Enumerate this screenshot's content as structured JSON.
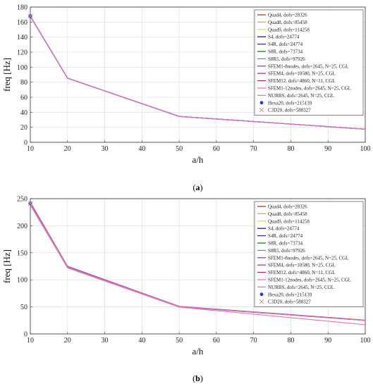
{
  "chart_data": [
    {
      "type": "line",
      "panel_label": "(a)",
      "panel_letter": "a",
      "xlabel": "a/h",
      "ylabel": "freq [Hz]",
      "xlim": [
        10,
        100
      ],
      "ylim": [
        0,
        180
      ],
      "xticks": [
        10,
        20,
        30,
        40,
        50,
        60,
        70,
        80,
        90,
        100
      ],
      "yticks": [
        0,
        20,
        40,
        60,
        80,
        100,
        120,
        140,
        160,
        180
      ],
      "grid": true,
      "legend_position": "top-right",
      "x": [
        10,
        20,
        50,
        100
      ],
      "series": [
        {
          "name": "Quad4, dofs=28326",
          "color": "#c0392b",
          "marker": "line",
          "values": [
            168,
            85.5,
            34.5,
            17.5
          ]
        },
        {
          "name": "Quad8, dofs=85458",
          "color": "#f5a623",
          "marker": "line",
          "values": [
            167.5,
            85.3,
            34.4,
            17.4
          ]
        },
        {
          "name": "Quad9, dofs=114258",
          "color": "#e6e62e",
          "marker": "line",
          "values": [
            167.5,
            85.3,
            34.4,
            17.4
          ]
        },
        {
          "name": "S4, dofs=24774",
          "color": "#1a1a8c",
          "marker": "line",
          "values": [
            167.8,
            85.4,
            34.5,
            17.5
          ]
        },
        {
          "name": "S4R, dofs=24774",
          "color": "#3333cc",
          "marker": "line",
          "values": [
            167.6,
            85.3,
            34.4,
            17.4
          ]
        },
        {
          "name": "S8R, dofs=73734",
          "color": "#1e7a1e",
          "marker": "line",
          "values": [
            167.4,
            85.2,
            34.4,
            17.4
          ]
        },
        {
          "name": "S8R5, dofs=97926",
          "color": "#3aa0d0",
          "marker": "line",
          "values": [
            167.4,
            85.2,
            34.4,
            17.4
          ]
        },
        {
          "name": "SFEM1-8nodes, dofs=2645, N=25, CGL",
          "color": "#8e44ad",
          "marker": "line",
          "values": [
            167.5,
            85.3,
            34.4,
            17.4
          ]
        },
        {
          "name": "SFEM4, dofs=10580, N=25, CGL",
          "color": "#b03a9a",
          "marker": "line",
          "values": [
            167.5,
            85.3,
            34.4,
            17.4
          ]
        },
        {
          "name": "SFEM12, dofs=4860, N=11, CGL",
          "color": "#d81b60",
          "marker": "line",
          "values": [
            167.5,
            85.3,
            34.4,
            17.4
          ]
        },
        {
          "name": "SFEM1-12nodes, dofs=2645, N=25, CGL",
          "color": "#e573b5",
          "marker": "line",
          "values": [
            167.5,
            85.3,
            34.4,
            17.4
          ]
        },
        {
          "name": "NURBS, dofs=2645, N=25, CGL",
          "color": "#d07ad0",
          "marker": "line",
          "values": [
            167.5,
            85.3,
            34.4,
            17.4
          ]
        },
        {
          "name": "Hexa20, dofs=215139",
          "color": "#1f3fcf",
          "marker": "dot",
          "values": [
            168,
            null,
            null,
            null
          ]
        },
        {
          "name": "C3D20, dofs=588327",
          "color": "#d09090",
          "marker": "x",
          "values": [
            168,
            null,
            null,
            null
          ]
        }
      ]
    },
    {
      "type": "line",
      "panel_label": "(b)",
      "panel_letter": "b",
      "xlabel": "a/h",
      "ylabel": "freq [Hz]",
      "xlim": [
        10,
        100
      ],
      "ylim": [
        0,
        250
      ],
      "xticks": [
        10,
        20,
        30,
        40,
        50,
        60,
        70,
        80,
        90,
        100
      ],
      "yticks": [
        0,
        50,
        100,
        150,
        200,
        250
      ],
      "grid": true,
      "legend_position": "top-right",
      "x": [
        10,
        20,
        50,
        100
      ],
      "series": [
        {
          "name": "Quad4, dofs=28326",
          "color": "#c0392b",
          "marker": "line",
          "values": [
            243,
            125,
            51,
            25.5
          ]
        },
        {
          "name": "Quad8, dofs=85458",
          "color": "#f5a623",
          "marker": "line",
          "values": [
            241,
            124,
            50.5,
            25
          ]
        },
        {
          "name": "Quad9, dofs=114258",
          "color": "#e6e62e",
          "marker": "line",
          "values": [
            241,
            124,
            50.5,
            25
          ]
        },
        {
          "name": "S4, dofs=24774",
          "color": "#1a1a8c",
          "marker": "line",
          "values": [
            242,
            124.5,
            50.5,
            25
          ]
        },
        {
          "name": "S4R, dofs=24774",
          "color": "#3333cc",
          "marker": "line",
          "values": [
            241,
            124,
            50.5,
            25
          ]
        },
        {
          "name": "S8R, dofs=73734",
          "color": "#1e7a1e",
          "marker": "line",
          "values": [
            240,
            123.5,
            50,
            25
          ]
        },
        {
          "name": "S8R5, dofs=97926",
          "color": "#3aa0d0",
          "marker": "line",
          "values": [
            240,
            123.5,
            50,
            25
          ]
        },
        {
          "name": "SFEM1-8nodes, dofs=2645, N=25, CGL",
          "color": "#8e44ad",
          "marker": "line",
          "values": [
            241,
            124,
            50.5,
            25
          ]
        },
        {
          "name": "SFEM4, dofs=10580, N=25, CGL",
          "color": "#b03a9a",
          "marker": "line",
          "values": [
            241,
            124,
            50.5,
            25
          ]
        },
        {
          "name": "SFEM12, dofs=4860, N=11, CGL",
          "color": "#d81b60",
          "marker": "line",
          "values": [
            241,
            124,
            50.5,
            25
          ]
        },
        {
          "name": "SFEM1-12nodes, dofs=2645, N=25, CGL",
          "color": "#e573b5",
          "marker": "line",
          "values": [
            238,
            122,
            49.5,
            17
          ]
        },
        {
          "name": "NURBS, dofs=2645, N=25, CGL",
          "color": "#d07ad0",
          "marker": "line",
          "values": [
            241,
            124,
            50.5,
            25
          ]
        },
        {
          "name": "Hexa20, dofs=215139",
          "color": "#1f3fcf",
          "marker": "dot",
          "values": [
            241,
            null,
            null,
            null
          ]
        },
        {
          "name": "C3D20, dofs=588327",
          "color": "#d09090",
          "marker": "x",
          "values": [
            241,
            null,
            null,
            null
          ]
        }
      ]
    }
  ]
}
